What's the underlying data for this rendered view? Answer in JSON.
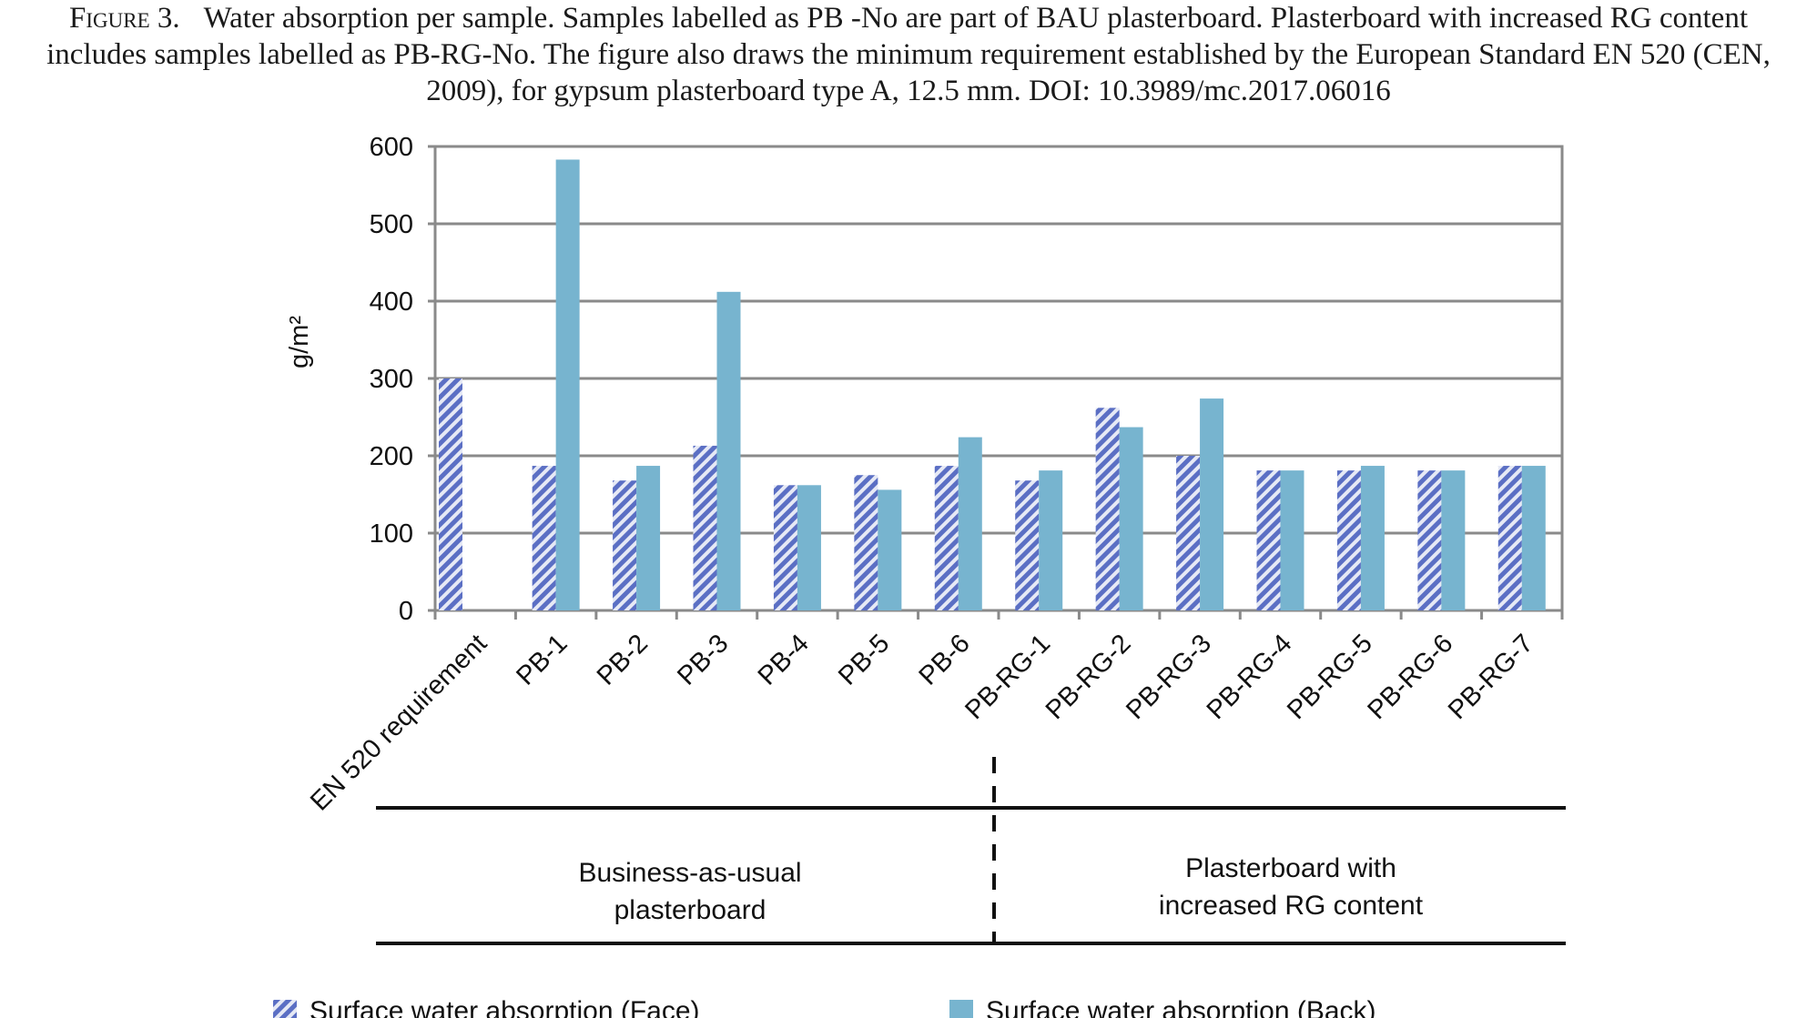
{
  "figure": {
    "label": "Figure 3.",
    "caption": "Water absorption per sample. Samples labelled as PB -No are part of BAU plasterboard. Plasterboard with increased RG content includes samples labelled as PB-RG-No. The figure also draws the minimum requirement established by the European Standard EN 520 (CEN, 2009), for gypsum plasterboard type A, 12.5 mm. DOI: 10.3989/mc.2017.06016"
  },
  "chart_data": {
    "type": "bar",
    "title": "",
    "xlabel": "",
    "ylabel": "g/m²",
    "ylim": [
      0,
      600
    ],
    "yticks": [
      0,
      100,
      200,
      300,
      400,
      500,
      600
    ],
    "grid": true,
    "legend_position": "bottom",
    "categories": [
      "EN 520 requirement",
      "PB-1",
      "PB-2",
      "PB-3",
      "PB-4",
      "PB-5",
      "PB-6",
      "PB-RG-1",
      "PB-RG-2",
      "PB-RG-3",
      "PB-RG-4",
      "PB-RG-5",
      "PB-RG-6",
      "PB-RG-7"
    ],
    "series": [
      {
        "name": "Surface water absorption (Face)",
        "pattern": "diagonal-hatch",
        "color": "#5b6fc4",
        "values": [
          300,
          187,
          168,
          213,
          162,
          175,
          187,
          168,
          262,
          200,
          181,
          181,
          181,
          187
        ]
      },
      {
        "name": "Surface water absorption (Back)",
        "pattern": "solid",
        "color": "#77b4cf",
        "values": [
          null,
          583,
          187,
          412,
          162,
          156,
          224,
          181,
          237,
          274,
          181,
          187,
          181,
          187
        ]
      }
    ],
    "groups": [
      {
        "label_lines": [
          "Business-as-usual",
          "plasterboard"
        ]
      },
      {
        "label_lines": [
          "Plasterboard with",
          "increased RG content"
        ]
      }
    ]
  }
}
